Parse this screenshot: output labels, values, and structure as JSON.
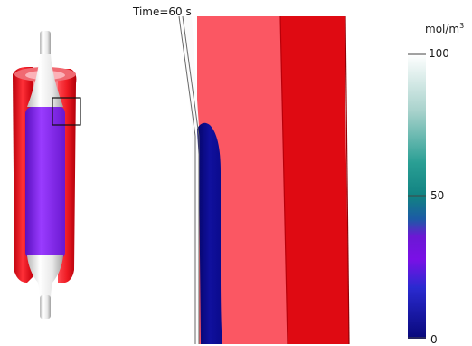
{
  "time_label": "Time=60 s",
  "colorbar": {
    "unit_base": "mol/m",
    "unit_exponent": "3",
    "ticks": [
      "100",
      "50",
      "0"
    ],
    "range": [
      0,
      100
    ],
    "stops": [
      {
        "value": 100,
        "color": "#ffffff"
      },
      {
        "value": 80,
        "color": "#a8d2cc"
      },
      {
        "value": 62,
        "color": "#2a9f94"
      },
      {
        "value": 50,
        "color": "#118282"
      },
      {
        "value": 42,
        "color": "#1c5aa6"
      },
      {
        "value": 36,
        "color": "#6b18d4"
      },
      {
        "value": 28,
        "color": "#7a10e6"
      },
      {
        "value": 18,
        "color": "#2a2ad0"
      },
      {
        "value": 0,
        "color": "#08087a"
      }
    ]
  },
  "colors": {
    "vessel_red": "#dd0a12",
    "vessel_light": "#fa5a66",
    "balloon_white": "#f2f2f2",
    "drug_purple": "#8a28f0",
    "drug_navy": "#0a0a96"
  }
}
